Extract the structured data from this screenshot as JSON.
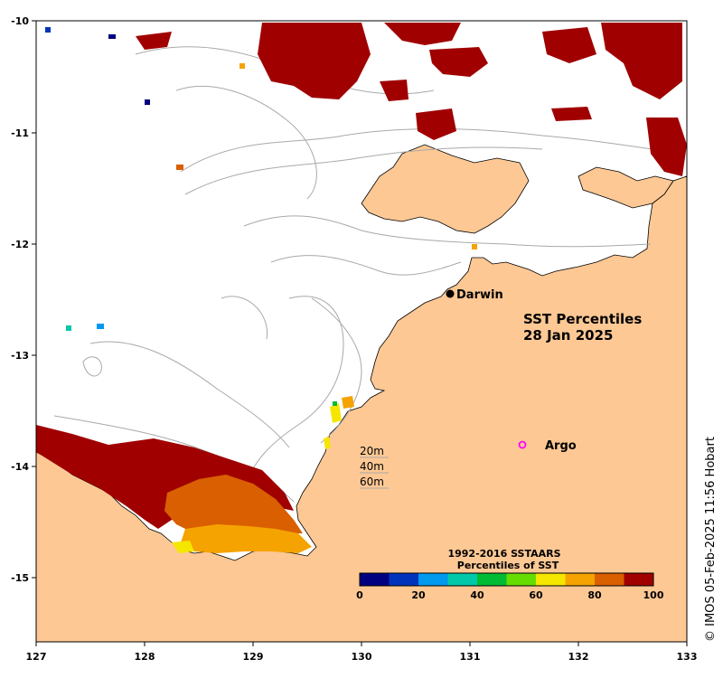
{
  "map": {
    "title_line1": "SST Percentiles",
    "title_line2": "28 Jan 2025",
    "x_ticks": [
      "127",
      "128",
      "129",
      "130",
      "131",
      "132",
      "133"
    ],
    "y_ticks": [
      "-10",
      "-11",
      "-12",
      "-13",
      "-14",
      "-15"
    ],
    "colors": {
      "land": "#fdc894",
      "sea": "#ffffff",
      "contour": "#a9a9a9",
      "coast": "#000000"
    }
  },
  "places": {
    "darwin": "Darwin",
    "argo": "Argo"
  },
  "depth_legend": [
    "20m",
    "40m",
    "60m"
  ],
  "colorbar": {
    "title_line1": "1992-2016 SSTAARS",
    "title_line2": "Percentiles of SST",
    "ticks": [
      "0",
      "20",
      "40",
      "60",
      "80",
      "100"
    ],
    "colors": [
      "#000080",
      "#0033bb",
      "#0099ee",
      "#00c8a8",
      "#00bb33",
      "#66dd00",
      "#f5e600",
      "#f5a300",
      "#d95f00",
      "#a00000"
    ]
  },
  "credit": "© IMOS 05-Feb-2025 11:56 Hobart"
}
